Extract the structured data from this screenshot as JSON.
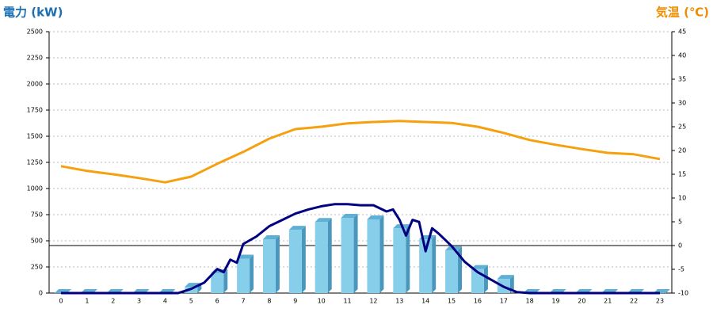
{
  "chart_data": {
    "type": "bar",
    "ylabel": "電力 (kW)",
    "y2label": "気温 (℃)",
    "categories": [
      "0",
      "1",
      "2",
      "3",
      "4",
      "5",
      "6",
      "7",
      "8",
      "9",
      "10",
      "11",
      "12",
      "13",
      "14",
      "15",
      "16",
      "17",
      "18",
      "19",
      "20",
      "21",
      "22",
      "23"
    ],
    "ylim": [
      0,
      2500
    ],
    "yticks": [
      0,
      250,
      500,
      750,
      1000,
      1250,
      1500,
      1750,
      2000,
      2250,
      2500
    ],
    "y2lim": [
      -10,
      45
    ],
    "y2ticks": [
      -10,
      -5,
      0,
      5,
      10,
      15,
      20,
      25,
      30,
      35,
      40,
      45
    ],
    "y2_reference_line": 0,
    "grid": true,
    "series": [
      {
        "type": "bar",
        "color": "#87ceeb",
        "values": [
          0,
          0,
          0,
          0,
          0,
          60,
          190,
          330,
          515,
          605,
          680,
          720,
          705,
          620,
          515,
          410,
          230,
          135,
          0,
          0,
          0,
          0,
          0,
          0
        ]
      },
      {
        "type": "line",
        "color": "#000080",
        "x": [
          0,
          1,
          2,
          3,
          4,
          4.5,
          5,
          5.5,
          6,
          6.25,
          6.5,
          6.75,
          7,
          7.5,
          8,
          8.5,
          9,
          9.5,
          10,
          10.5,
          11,
          11.5,
          12,
          12.5,
          12.75,
          13,
          13.25,
          13.5,
          13.75,
          14,
          14.25,
          14.5,
          15,
          15.5,
          16,
          16.5,
          17,
          17.5,
          18,
          19,
          20,
          21,
          22,
          23
        ],
        "values": [
          0,
          0,
          0,
          0,
          0,
          0,
          40,
          100,
          230,
          200,
          320,
          290,
          470,
          540,
          640,
          700,
          760,
          800,
          830,
          850,
          850,
          840,
          840,
          780,
          800,
          700,
          550,
          700,
          680,
          400,
          620,
          570,
          450,
          300,
          200,
          130,
          60,
          10,
          0,
          0,
          0,
          0,
          0,
          0
        ]
      },
      {
        "type": "line",
        "axis": "y2",
        "color": "#f5a00f",
        "values": [
          16.7,
          15.7,
          15,
          14.2,
          13.3,
          14.5,
          17.2,
          19.7,
          22.5,
          24.5,
          25,
          25.7,
          26,
          26.2,
          26,
          25.8,
          25,
          23.7,
          22.2,
          21.2,
          20.3,
          19.5,
          19.2,
          18.2
        ]
      }
    ]
  }
}
